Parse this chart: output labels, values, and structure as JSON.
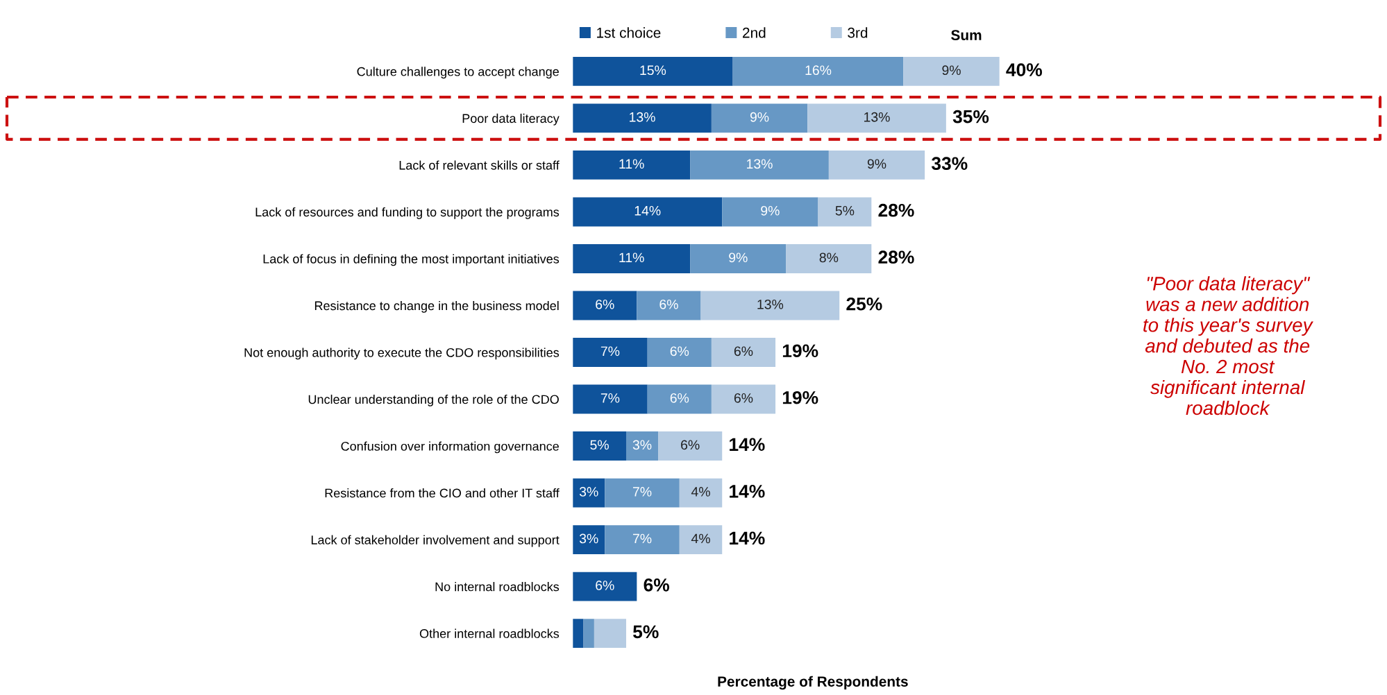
{
  "chart_data": {
    "type": "bar",
    "orientation": "horizontal",
    "stacked": true,
    "categories": [
      "Culture challenges to accept change",
      "Poor data literacy",
      "Lack of relevant skills or staff",
      "Lack of resources and funding to support the programs",
      "Lack of focus in defining the most important initiatives",
      "Resistance to change in the business model",
      "Not enough authority to execute the CDO responsibilities",
      "Unclear understanding of the role of the CDO",
      "Confusion over information governance",
      "Resistance from the CIO and other IT staff",
      "Lack of stakeholder involvement and support",
      "No internal roadblocks",
      "Other internal roadblocks"
    ],
    "series": [
      {
        "name": "1st choice",
        "color": "#0f539b",
        "values": [
          15,
          13,
          11,
          14,
          11,
          6,
          7,
          7,
          5,
          3,
          3,
          6,
          1
        ],
        "value_labels": [
          "15%",
          "13%",
          "11%",
          "14%",
          "11%",
          "6%",
          "7%",
          "7%",
          "5%",
          "3%",
          "3%",
          "6%",
          null
        ]
      },
      {
        "name": "2nd",
        "color": "#6798c5",
        "values": [
          16,
          9,
          13,
          9,
          9,
          6,
          6,
          6,
          3,
          7,
          7,
          0,
          1
        ],
        "value_labels": [
          "16%",
          "9%",
          "13%",
          "9%",
          "9%",
          "6%",
          "6%",
          "6%",
          "3%",
          "7%",
          "7%",
          null,
          null
        ]
      },
      {
        "name": "3rd",
        "color": "#b5cbe2",
        "values": [
          9,
          13,
          9,
          5,
          8,
          13,
          6,
          6,
          6,
          4,
          4,
          0,
          3
        ],
        "value_labels": [
          "9%",
          "13%",
          "9%",
          "5%",
          "8%",
          "13%",
          "6%",
          "6%",
          "6%",
          "4%",
          "4%",
          null,
          null
        ]
      }
    ],
    "totals": [
      "40%",
      "35%",
      "33%",
      "28%",
      "28%",
      "25%",
      "19%",
      "19%",
      "14%",
      "14%",
      "14%",
      "6%",
      "5%"
    ],
    "xlabel": "Percentage of Respondents",
    "legend": "top",
    "grid": false,
    "annotations": [
      "Sum",
      "\"Poor data literacy\"\nwas a new addition\nto this year's survey\nand debuted as the\nNo. 2 most\nsignificant internal\nroadblock"
    ]
  }
}
